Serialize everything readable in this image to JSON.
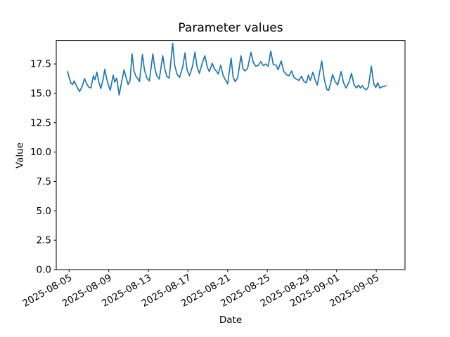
{
  "chart_data": {
    "type": "line",
    "title": "Parameter values",
    "xlabel": "Date",
    "ylabel": "Value",
    "line_color": "#1f77b4",
    "legend": null,
    "grid": false,
    "x_unit": "days since 2025-08-05",
    "xlim_days": [
      -1.3,
      33.9
    ],
    "ylim": [
      0,
      19.5
    ],
    "yticks": [
      {
        "value": 0.0,
        "label": "0.0"
      },
      {
        "value": 2.5,
        "label": "2.5"
      },
      {
        "value": 5.0,
        "label": "5.0"
      },
      {
        "value": 7.5,
        "label": "7.5"
      },
      {
        "value": 10.0,
        "label": "10.0"
      },
      {
        "value": 12.5,
        "label": "12.5"
      },
      {
        "value": 15.0,
        "label": "15.0"
      },
      {
        "value": 17.5,
        "label": "17.5"
      }
    ],
    "xticks": [
      {
        "day": 0,
        "label": "2025-08-05"
      },
      {
        "day": 4,
        "label": "2025-08-09"
      },
      {
        "day": 8,
        "label": "2025-08-13"
      },
      {
        "day": 12,
        "label": "2025-08-17"
      },
      {
        "day": 16,
        "label": "2025-08-21"
      },
      {
        "day": 20,
        "label": "2025-08-25"
      },
      {
        "day": 24,
        "label": "2025-08-29"
      },
      {
        "day": 27,
        "label": "2025-09-01"
      },
      {
        "day": 31,
        "label": "2025-09-05"
      }
    ],
    "points": [
      [
        -0.16,
        16.85
      ],
      [
        0.0,
        16.35
      ],
      [
        0.2,
        15.85
      ],
      [
        0.35,
        15.75
      ],
      [
        0.5,
        16.05
      ],
      [
        0.65,
        15.8
      ],
      [
        0.85,
        15.45
      ],
      [
        1.05,
        15.15
      ],
      [
        1.3,
        15.55
      ],
      [
        1.55,
        16.25
      ],
      [
        1.75,
        15.85
      ],
      [
        1.95,
        15.55
      ],
      [
        2.2,
        15.45
      ],
      [
        2.45,
        16.5
      ],
      [
        2.6,
        16.15
      ],
      [
        2.8,
        16.8
      ],
      [
        3.0,
        15.95
      ],
      [
        3.2,
        15.4
      ],
      [
        3.45,
        16.25
      ],
      [
        3.6,
        17.05
      ],
      [
        3.8,
        16.2
      ],
      [
        4.0,
        15.6
      ],
      [
        4.15,
        15.25
      ],
      [
        4.45,
        16.55
      ],
      [
        4.6,
        15.95
      ],
      [
        4.8,
        16.3
      ],
      [
        5.05,
        14.85
      ],
      [
        5.35,
        16.2
      ],
      [
        5.55,
        17.0
      ],
      [
        5.75,
        16.35
      ],
      [
        5.95,
        15.75
      ],
      [
        6.15,
        16.1
      ],
      [
        6.35,
        18.35
      ],
      [
        6.55,
        16.9
      ],
      [
        6.75,
        16.45
      ],
      [
        6.95,
        16.2
      ],
      [
        7.1,
        16.0
      ],
      [
        7.4,
        18.3
      ],
      [
        7.6,
        17.0
      ],
      [
        7.85,
        16.3
      ],
      [
        8.1,
        16.05
      ],
      [
        8.45,
        18.35
      ],
      [
        8.65,
        17.15
      ],
      [
        8.85,
        16.5
      ],
      [
        9.1,
        16.2
      ],
      [
        9.45,
        18.2
      ],
      [
        9.65,
        17.1
      ],
      [
        9.85,
        16.45
      ],
      [
        10.1,
        16.3
      ],
      [
        10.45,
        19.25
      ],
      [
        10.65,
        17.4
      ],
      [
        10.9,
        16.6
      ],
      [
        11.15,
        16.35
      ],
      [
        11.45,
        17.2
      ],
      [
        11.7,
        18.45
      ],
      [
        11.9,
        17.0
      ],
      [
        12.15,
        16.5
      ],
      [
        12.45,
        17.3
      ],
      [
        12.7,
        18.5
      ],
      [
        12.9,
        17.3
      ],
      [
        13.15,
        16.7
      ],
      [
        13.45,
        17.6
      ],
      [
        13.7,
        18.2
      ],
      [
        13.95,
        17.2
      ],
      [
        14.15,
        16.85
      ],
      [
        14.45,
        17.55
      ],
      [
        14.65,
        17.1
      ],
      [
        14.85,
        16.9
      ],
      [
        15.05,
        16.65
      ],
      [
        15.3,
        17.4
      ],
      [
        15.55,
        16.5
      ],
      [
        15.8,
        16.1
      ],
      [
        16.0,
        15.8
      ],
      [
        16.35,
        18.0
      ],
      [
        16.55,
        16.4
      ],
      [
        16.75,
        16.0
      ],
      [
        17.0,
        16.3
      ],
      [
        17.35,
        18.2
      ],
      [
        17.55,
        17.1
      ],
      [
        17.75,
        16.9
      ],
      [
        18.0,
        17.1
      ],
      [
        18.35,
        18.5
      ],
      [
        18.6,
        17.6
      ],
      [
        18.85,
        17.3
      ],
      [
        19.1,
        17.4
      ],
      [
        19.35,
        17.7
      ],
      [
        19.6,
        17.35
      ],
      [
        19.85,
        17.5
      ],
      [
        20.1,
        17.3
      ],
      [
        20.35,
        18.6
      ],
      [
        20.6,
        17.45
      ],
      [
        20.9,
        17.4
      ],
      [
        21.1,
        17.0
      ],
      [
        21.4,
        17.75
      ],
      [
        21.65,
        16.9
      ],
      [
        21.9,
        16.6
      ],
      [
        22.2,
        16.5
      ],
      [
        22.45,
        16.9
      ],
      [
        22.7,
        16.35
      ],
      [
        22.95,
        16.2
      ],
      [
        23.2,
        16.1
      ],
      [
        23.45,
        16.45
      ],
      [
        23.7,
        16.0
      ],
      [
        23.95,
        15.9
      ],
      [
        24.15,
        16.55
      ],
      [
        24.35,
        16.1
      ],
      [
        24.6,
        16.8
      ],
      [
        24.85,
        16.1
      ],
      [
        25.05,
        15.7
      ],
      [
        25.5,
        17.75
      ],
      [
        25.75,
        16.2
      ],
      [
        26.0,
        15.35
      ],
      [
        26.2,
        15.25
      ],
      [
        26.4,
        15.9
      ],
      [
        26.6,
        16.6
      ],
      [
        26.85,
        16.0
      ],
      [
        27.1,
        15.7
      ],
      [
        27.45,
        16.85
      ],
      [
        27.7,
        15.9
      ],
      [
        27.95,
        15.45
      ],
      [
        28.25,
        15.95
      ],
      [
        28.5,
        16.7
      ],
      [
        28.75,
        15.75
      ],
      [
        29.0,
        15.45
      ],
      [
        29.2,
        15.7
      ],
      [
        29.4,
        15.45
      ],
      [
        29.6,
        15.65
      ],
      [
        29.8,
        15.4
      ],
      [
        30.0,
        15.3
      ],
      [
        30.2,
        15.55
      ],
      [
        30.5,
        17.3
      ],
      [
        30.75,
        15.8
      ],
      [
        30.95,
        15.5
      ],
      [
        31.15,
        15.9
      ],
      [
        31.35,
        15.45
      ],
      [
        31.6,
        15.55
      ],
      [
        31.8,
        15.6
      ],
      [
        32.0,
        15.65
      ]
    ]
  }
}
